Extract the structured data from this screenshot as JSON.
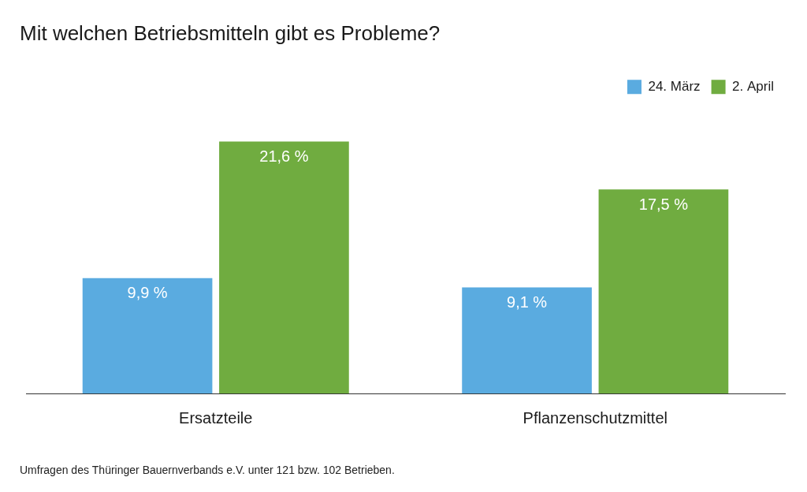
{
  "chart_data": {
    "type": "bar",
    "title": "Mit welchen Betriebsmitteln gibt es Probleme?",
    "footnote": "Umfragen des Thüringer Bauernverbands e.V. unter 121 bzw. 102 Betrieben.",
    "categories": [
      "Ersatzteile",
      "Pflanzenschutzmittel"
    ],
    "series": [
      {
        "name": "24. März",
        "color": "#5aabe0",
        "values": [
          9.9,
          9.1
        ],
        "value_labels": [
          "9,9 %",
          "9,1 %"
        ]
      },
      {
        "name": "2. April",
        "color": "#70ac40",
        "values": [
          21.6,
          17.5
        ],
        "value_labels": [
          "21,6 %",
          "17,5 %"
        ]
      }
    ],
    "ylim": [
      0,
      25
    ],
    "grid": false,
    "legend": "top-right",
    "data_labels": true,
    "tick_labels": "x"
  }
}
